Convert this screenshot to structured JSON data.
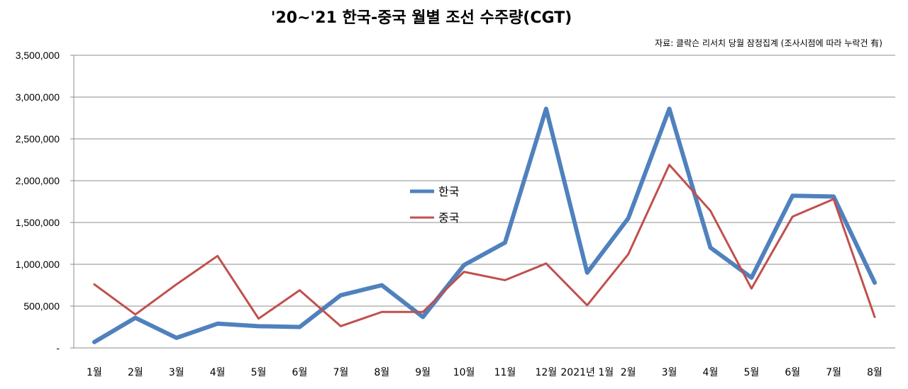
{
  "chart_data": {
    "type": "line",
    "title": "'20~'21 한국-중국 월별 조선 수주량(CGT)",
    "source_note": "자료: 클락슨 리서치 당월 잠정집계 (조사시점에 따라 누락건 有)",
    "categories": [
      "1월",
      "2월",
      "3월",
      "4월",
      "5월",
      "6월",
      "7월",
      "8월",
      "9월",
      "10월",
      "11월",
      "12월",
      "2021년 1월",
      "2월",
      "3월",
      "4월",
      "5월",
      "6월",
      "7월",
      "8월"
    ],
    "y_ticks": [
      "-",
      "500,000",
      "1,000,000",
      "1,500,000",
      "2,000,000",
      "2,500,000",
      "3,000,000",
      "3,500,000"
    ],
    "ylim": [
      0,
      3500000
    ],
    "grid": true,
    "legend_position": "center",
    "series": [
      {
        "name": "한국",
        "color": "#4F81BD",
        "values": [
          70000,
          360000,
          120000,
          290000,
          260000,
          250000,
          630000,
          750000,
          370000,
          990000,
          1260000,
          2860000,
          900000,
          1550000,
          2860000,
          1200000,
          840000,
          1820000,
          1810000,
          780000
        ]
      },
      {
        "name": "중국",
        "color": "#C0504D",
        "values": [
          760000,
          400000,
          760000,
          1100000,
          350000,
          690000,
          260000,
          430000,
          430000,
          910000,
          810000,
          1010000,
          510000,
          1120000,
          2190000,
          1640000,
          710000,
          1570000,
          1780000,
          370000
        ]
      }
    ]
  }
}
